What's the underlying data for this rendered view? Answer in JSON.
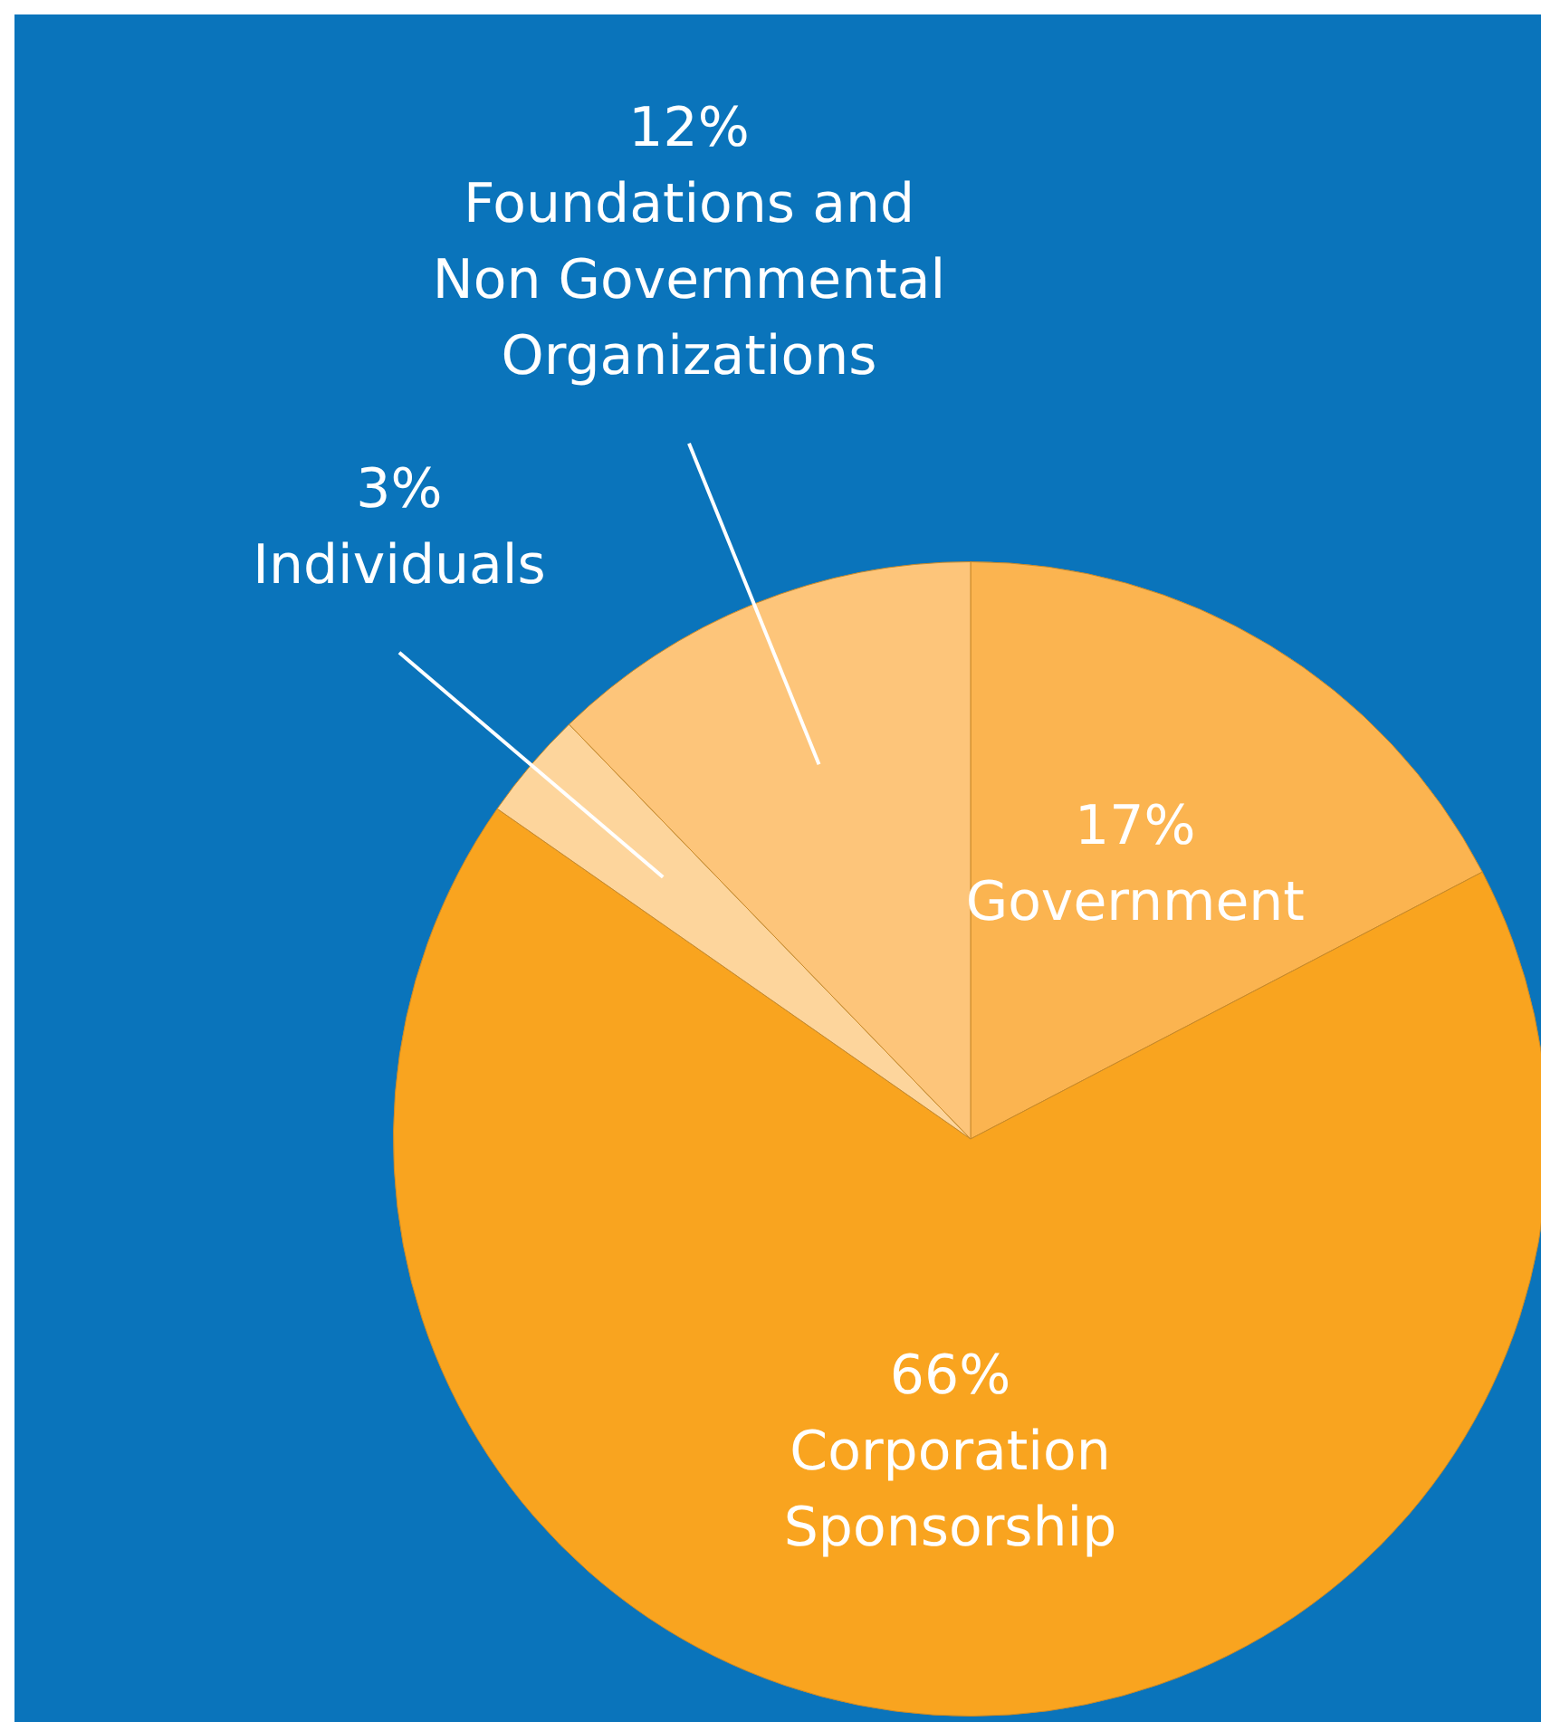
{
  "chart_data": {
    "type": "pie",
    "categories": [
      "Government",
      "Corporation Sponsorship",
      "Individuals",
      "Foundations and Non Governmental Organizations"
    ],
    "values": [
      17,
      66,
      3,
      12
    ],
    "value_labels": [
      "17%",
      "66%",
      "3%",
      "12%"
    ],
    "colors": [
      "#fbb450",
      "#f9a41f",
      "#fdd59c",
      "#fdc57a"
    ],
    "legend": false
  }
}
